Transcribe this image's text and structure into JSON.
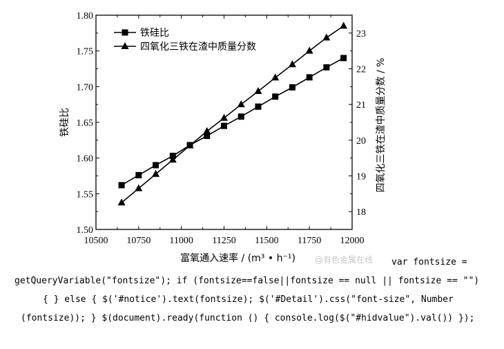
{
  "chart_data": {
    "type": "line",
    "title": "",
    "xlabel": "富氧通入速率 / (m³ • h⁻¹)",
    "ylabel_left": "铁硅比",
    "ylabel_right": "四氧化三铁在渣中质量分数 / %",
    "xlim": [
      10500,
      12000
    ],
    "ylim_left": [
      1.5,
      1.8
    ],
    "ylim_right": [
      17.5,
      23.5
    ],
    "x_ticks": [
      "10500",
      "10750",
      "11000",
      "11250",
      "11500",
      "11750",
      "12000"
    ],
    "y_left_ticks": [
      "1.50",
      "1.55",
      "1.60",
      "1.65",
      "1.70",
      "1.75",
      "1.80"
    ],
    "y_right_ticks": [
      "18",
      "19",
      "20",
      "21",
      "22",
      "23"
    ],
    "legend_position": "top-left",
    "grid": false,
    "series": [
      {
        "name": "铁硅比",
        "axis": "left",
        "marker": "square",
        "x": [
          10650,
          10750,
          10850,
          10950,
          11050,
          11150,
          11250,
          11350,
          11450,
          11550,
          11650,
          11750,
          11850,
          11950
        ],
        "y": [
          1.562,
          1.576,
          1.59,
          1.603,
          1.618,
          1.631,
          1.645,
          1.658,
          1.672,
          1.686,
          1.699,
          1.713,
          1.727,
          1.74
        ]
      },
      {
        "name": "四氧化三铁在渣中质量分数",
        "axis": "right",
        "marker": "triangle",
        "x": [
          10650,
          10750,
          10850,
          10950,
          11050,
          11150,
          11250,
          11350,
          11450,
          11550,
          11650,
          11750,
          11850,
          11950
        ],
        "y": [
          18.25,
          18.65,
          19.05,
          19.45,
          19.85,
          20.25,
          20.62,
          21.0,
          21.37,
          21.75,
          22.12,
          22.5,
          22.87,
          23.2
        ]
      }
    ]
  },
  "watermark": "@有色金属在线",
  "code_text": {
    "line1": "var fontsize =",
    "line2": "getQueryVariable(\"fontsize\"); if (fontsize==false||fontsize == null || fontsize == \"\")",
    "line3": "{ } else { $('#notice').text(fontsize); $('#Detail').css(\"font-size\", Number",
    "line4": "(fontsize)); } $(document).ready(function () { console.log($(\"#hidvalue\").val()) });"
  }
}
